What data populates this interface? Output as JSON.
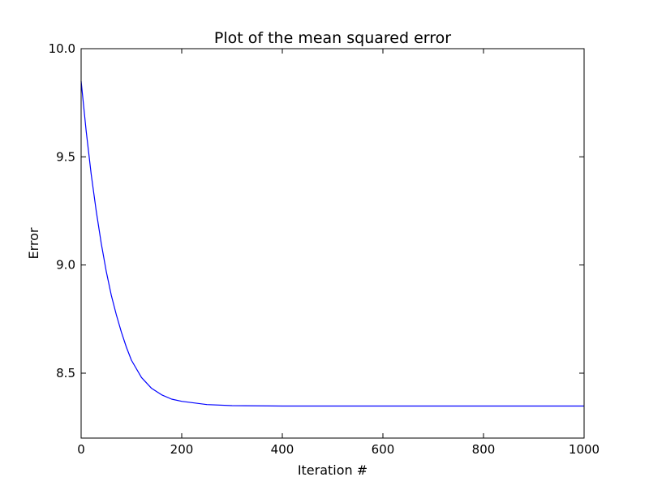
{
  "chart_data": {
    "type": "line",
    "title": "Plot of the mean squared error",
    "xlabel": "Iteration #",
    "ylabel": "Error",
    "xlim": [
      0,
      1000
    ],
    "ylim": [
      8.2,
      10.0
    ],
    "xticks": [
      0,
      200,
      400,
      600,
      800,
      1000
    ],
    "xtick_labels": [
      "0",
      "200",
      "400",
      "600",
      "800",
      "1000"
    ],
    "yticks": [
      8.5,
      9.0,
      9.5,
      10.0
    ],
    "ytick_labels": [
      "8.5",
      "9.0",
      "9.5",
      "10.0"
    ],
    "grid": false,
    "legend": "none",
    "series": [
      {
        "color": "#0000ff",
        "x": [
          0,
          10,
          20,
          30,
          40,
          50,
          60,
          70,
          80,
          90,
          100,
          120,
          140,
          160,
          180,
          200,
          250,
          300,
          400,
          600,
          800,
          1000
        ],
        "y": [
          9.85,
          9.62,
          9.42,
          9.25,
          9.1,
          8.97,
          8.86,
          8.77,
          8.69,
          8.62,
          8.56,
          8.48,
          8.43,
          8.4,
          8.38,
          8.37,
          8.355,
          8.35,
          8.348,
          8.348,
          8.348,
          8.348
        ]
      }
    ]
  }
}
